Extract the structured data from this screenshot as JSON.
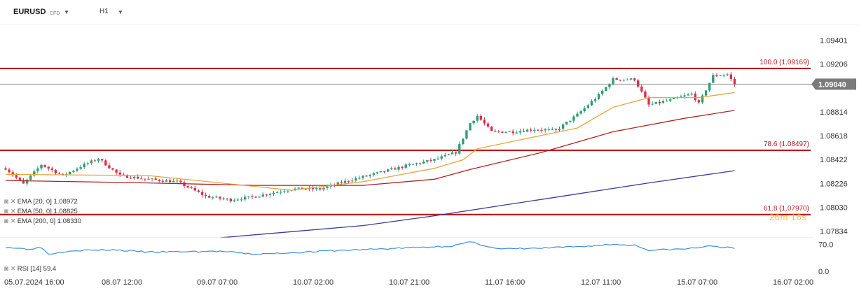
{
  "toolbar": {
    "symbol": "EURUSD",
    "symbol_type": "CFD",
    "timeframe": "H1",
    "dropdown_icon": "caret-down-icon"
  },
  "colors": {
    "bull": "#2e9e74",
    "bear": "#d9304d",
    "ema20": "#e8a53a",
    "ema50": "#b22222",
    "ema200": "#3b3ba0",
    "level": "#b71c1c",
    "rsi": "#3d8fe0",
    "price_badge": "#7a7a7a"
  },
  "legend": {
    "ema20": "EMA [20, 0] 1.08972",
    "ema50": "EMA [50, 0] 1.08825",
    "ema200": "EMA [200, 0] 1.08330",
    "rsi": "RSI [14] 59.4"
  },
  "countdown": "26m 16s",
  "chart_data": {
    "type": "candlestick",
    "symbol": "EURUSD",
    "timeframe": "H1",
    "last_price": 1.0904,
    "last_price_label": "1.09040",
    "y_ticks": [
      1.09401,
      1.09206,
      1.08814,
      1.08618,
      1.08422,
      1.08226,
      1.0803,
      1.07834
    ],
    "y_tick_labels": [
      "1.09401",
      "1.09206",
      "1.08814",
      "1.08618",
      "1.08422",
      "1.08226",
      "1.08030",
      "1.07834"
    ],
    "ylim": [
      1.0778,
      1.0953
    ],
    "x_labels": [
      "05.07.2024 16:00",
      "08.07 12:00",
      "09.07 07:00",
      "10.07 02:00",
      "10.07 21:00",
      "11.07 16:00",
      "12.07 11:00",
      "15.07 07:00",
      "16.07 02:00"
    ],
    "fib_levels": [
      {
        "label": "100.0 (1.09169)",
        "value": 1.09169
      },
      {
        "label": "78.6 (1.08497)",
        "value": 1.08497
      },
      {
        "label": "61.8 (1.07970)",
        "value": 1.0797
      }
    ],
    "anchors": [
      {
        "i": 0,
        "v": 1.0835
      },
      {
        "i": 5,
        "v": 1.0822
      },
      {
        "i": 10,
        "v": 1.0838
      },
      {
        "i": 16,
        "v": 1.0829
      },
      {
        "i": 22,
        "v": 1.0838
      },
      {
        "i": 26,
        "v": 1.0843
      },
      {
        "i": 32,
        "v": 1.0829
      },
      {
        "i": 40,
        "v": 1.0826
      },
      {
        "i": 48,
        "v": 1.0824
      },
      {
        "i": 56,
        "v": 1.0812
      },
      {
        "i": 63,
        "v": 1.0809
      },
      {
        "i": 70,
        "v": 1.0812
      },
      {
        "i": 80,
        "v": 1.0818
      },
      {
        "i": 88,
        "v": 1.0818
      },
      {
        "i": 96,
        "v": 1.0825
      },
      {
        "i": 104,
        "v": 1.0831
      },
      {
        "i": 112,
        "v": 1.0837
      },
      {
        "i": 120,
        "v": 1.0842
      },
      {
        "i": 126,
        "v": 1.0848
      },
      {
        "i": 130,
        "v": 1.0872
      },
      {
        "i": 132,
        "v": 1.0878
      },
      {
        "i": 136,
        "v": 1.0865
      },
      {
        "i": 142,
        "v": 1.0865
      },
      {
        "i": 148,
        "v": 1.0867
      },
      {
        "i": 154,
        "v": 1.0866
      },
      {
        "i": 160,
        "v": 1.0879
      },
      {
        "i": 166,
        "v": 1.0895
      },
      {
        "i": 170,
        "v": 1.0908
      },
      {
        "i": 176,
        "v": 1.0908
      },
      {
        "i": 180,
        "v": 1.0887
      },
      {
        "i": 186,
        "v": 1.0891
      },
      {
        "i": 192,
        "v": 1.0896
      },
      {
        "i": 194,
        "v": 1.0888
      },
      {
        "i": 198,
        "v": 1.0911
      },
      {
        "i": 202,
        "v": 1.0912
      },
      {
        "i": 204,
        "v": 1.0904
      }
    ],
    "ema20": [
      [
        0,
        1.083
      ],
      [
        40,
        1.0829
      ],
      [
        80,
        1.0817
      ],
      [
        100,
        1.0824
      ],
      [
        120,
        1.0835
      ],
      [
        128,
        1.0842
      ],
      [
        132,
        1.0851
      ],
      [
        150,
        1.0862
      ],
      [
        160,
        1.0868
      ],
      [
        170,
        1.0885
      ],
      [
        180,
        1.0893
      ],
      [
        194,
        1.0893
      ],
      [
        204,
        1.08972
      ]
    ],
    "ema50": [
      [
        0,
        1.0825
      ],
      [
        40,
        1.0823
      ],
      [
        70,
        1.0821
      ],
      [
        100,
        1.0821
      ],
      [
        120,
        1.0826
      ],
      [
        130,
        1.0834
      ],
      [
        150,
        1.0848
      ],
      [
        170,
        1.0865
      ],
      [
        190,
        1.0876
      ],
      [
        204,
        1.08825
      ]
    ],
    "ema200": [
      [
        60,
        1.0778
      ],
      [
        80,
        1.0783
      ],
      [
        100,
        1.0788
      ],
      [
        120,
        1.0796
      ],
      [
        140,
        1.0805
      ],
      [
        160,
        1.0814
      ],
      [
        180,
        1.0823
      ],
      [
        204,
        1.0833
      ]
    ],
    "rsi": {
      "ticks": [
        70.0,
        0.0
      ],
      "tick_labels": [
        "70.0",
        "0.0"
      ],
      "last": 59.4,
      "anchors": [
        [
          0,
          63
        ],
        [
          6,
          58
        ],
        [
          10,
          62
        ],
        [
          12,
          45
        ],
        [
          18,
          54
        ],
        [
          30,
          56
        ],
        [
          40,
          50
        ],
        [
          60,
          52
        ],
        [
          70,
          44
        ],
        [
          90,
          53
        ],
        [
          110,
          60
        ],
        [
          125,
          66
        ],
        [
          130,
          76
        ],
        [
          132,
          72
        ],
        [
          138,
          58
        ],
        [
          150,
          60
        ],
        [
          160,
          64
        ],
        [
          170,
          70
        ],
        [
          176,
          68
        ],
        [
          180,
          55
        ],
        [
          190,
          58
        ],
        [
          198,
          66
        ],
        [
          204,
          59.4
        ]
      ]
    }
  }
}
